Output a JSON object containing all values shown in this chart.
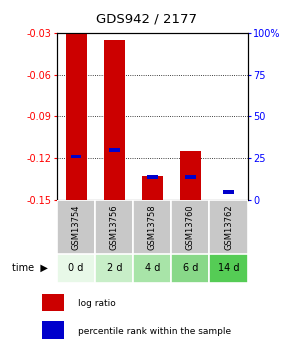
{
  "title": "GDS942 / 2177",
  "samples": [
    "GSM13754",
    "GSM13756",
    "GSM13758",
    "GSM13760",
    "GSM13762"
  ],
  "time_labels": [
    "0 d",
    "2 d",
    "4 d",
    "6 d",
    "14 d"
  ],
  "log_ratios": [
    -0.031,
    -0.035,
    -0.133,
    -0.115,
    -0.151
  ],
  "percentile_ranks": [
    26,
    30,
    14,
    14,
    5
  ],
  "ylim_left": [
    -0.15,
    -0.03
  ],
  "yticks_left": [
    -0.15,
    -0.12,
    -0.09,
    -0.06,
    -0.03
  ],
  "yticks_right": [
    0,
    25,
    50,
    75,
    100
  ],
  "bar_color": "#cc0000",
  "percentile_color": "#0000cc",
  "bar_width": 0.55,
  "background_color": "#ffffff",
  "label_bg_gray": "#c8c8c8",
  "label_bg_green": [
    "#e8f8e8",
    "#c8eec8",
    "#a8e0a8",
    "#88d888",
    "#66cc66"
  ],
  "legend_red_label": "log ratio",
  "legend_blue_label": "percentile rank within the sample",
  "time_arrow_label": "time"
}
